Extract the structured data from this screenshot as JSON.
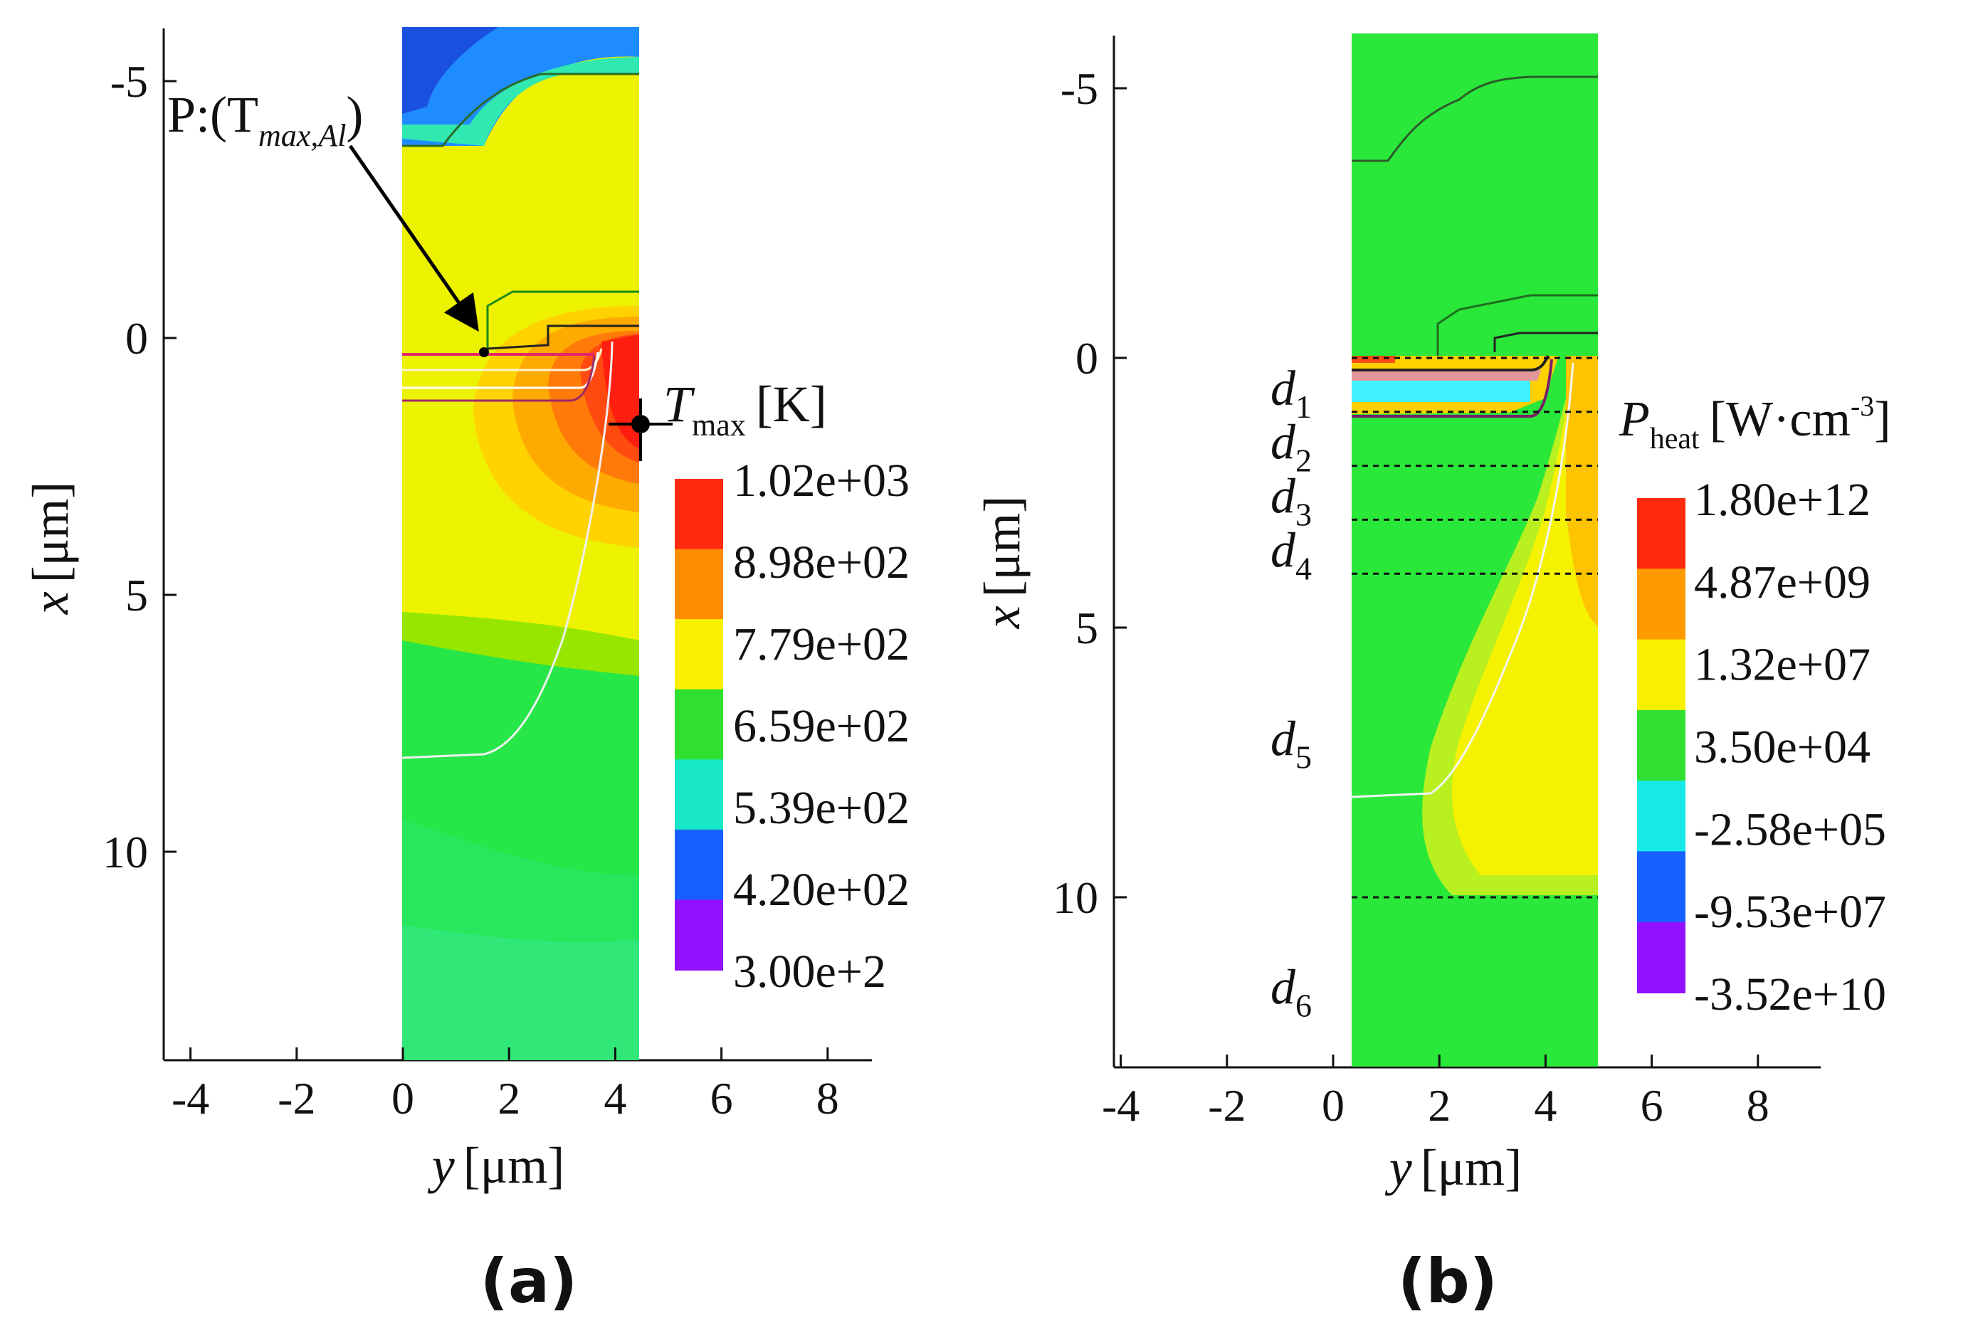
{
  "panels": [
    {
      "id": "a",
      "panel_label": "(a)",
      "xlabel_var": "y",
      "xlabel_unit": "[μm]",
      "ylabel_var": "x",
      "ylabel_unit": "[μm]",
      "x_ticks": [
        "-4",
        "-2",
        "0",
        "2",
        "4",
        "6",
        "8"
      ],
      "y_ticks": [
        "-5",
        "0",
        "5",
        "10"
      ],
      "annotation_point": "P:(T",
      "annotation_point_sub": "max,Al",
      "annotation_point_close": ")",
      "annotation_max": "T",
      "annotation_max_sub": "max",
      "annotation_max_unit": "[K]",
      "colorbar_labels": [
        "1.02e+03",
        "8.98e+02",
        "7.79e+02",
        "6.59e+02",
        "5.39e+02",
        "4.20e+02",
        "3.00e+2"
      ]
    },
    {
      "id": "b",
      "panel_label": "(b)",
      "xlabel_var": "y",
      "xlabel_unit": "[μm]",
      "ylabel_var": "x",
      "ylabel_unit": "[μm]",
      "x_ticks": [
        "-4",
        "-2",
        "0",
        "2",
        "4",
        "6",
        "8"
      ],
      "y_ticks": [
        "-5",
        "0",
        "5",
        "10"
      ],
      "colorbar_title_var": "P",
      "colorbar_title_sub": "heat",
      "colorbar_title_unit": "[W·cm",
      "colorbar_title_exp": "-3",
      "colorbar_title_close": "]",
      "regions": [
        {
          "label": "d",
          "sub": "1"
        },
        {
          "label": "d",
          "sub": "2"
        },
        {
          "label": "d",
          "sub": "3"
        },
        {
          "label": "d",
          "sub": "4"
        },
        {
          "label": "d",
          "sub": "5"
        },
        {
          "label": "d",
          "sub": "6"
        }
      ],
      "colorbar_labels": [
        "1.80e+12",
        "4.87e+09",
        "1.32e+07",
        "3.50e+04",
        "-2.58e+05",
        "-9.53e+07",
        "-3.52e+10"
      ]
    }
  ],
  "chart_data": [
    {
      "type": "heatmap",
      "title": "",
      "xlabel": "y [μm]",
      "ylabel": "x [μm]",
      "xlim": [
        -4.4,
        8.7
      ],
      "ylim": [
        14,
        -6.2
      ],
      "x_ticks": [
        -4,
        -2,
        0,
        2,
        4,
        6,
        8
      ],
      "y_ticks": [
        -5,
        0,
        5,
        10
      ],
      "domain_y": [
        0,
        4.5
      ],
      "colorbar_title": "T max [K]",
      "colorbar_levels": [
        1020,
        898,
        779,
        659,
        539,
        420,
        300
      ],
      "colors": [
        "#ff2a0f",
        "#ff8c00",
        "#f9f100",
        "#2fe030",
        "#18e8c8",
        "#1560ff",
        "#9010ff"
      ],
      "annotations": [
        {
          "text": "P:(T max,Al)",
          "x": 1.6,
          "y": 0.3
        },
        {
          "text": "T max",
          "x": 4.5,
          "y": 1.6
        }
      ]
    },
    {
      "type": "heatmap",
      "title": "",
      "xlabel": "y [μm]",
      "ylabel": "x [μm]",
      "xlim": [
        -4.4,
        8.7
      ],
      "ylim": [
        13.2,
        -6.2
      ],
      "x_ticks": [
        -4,
        -2,
        0,
        2,
        4,
        6,
        8
      ],
      "y_ticks": [
        -5,
        0,
        5,
        10
      ],
      "domain_y": [
        0,
        4.6
      ],
      "colorbar_title": "P heat [W·cm-3]",
      "colorbar_levels": [
        1800000000000.0,
        4870000000.0,
        13200000.0,
        35000.0,
        -258000.0,
        -95300000.0,
        -35200000000.0
      ],
      "colors": [
        "#ff2a0f",
        "#ff9a00",
        "#f9f100",
        "#2fe030",
        "#18e8e8",
        "#1560ff",
        "#9010ff"
      ],
      "region_boundaries_x": [
        0,
        1.0,
        2.0,
        3.0,
        4.0,
        10.0
      ]
    }
  ]
}
